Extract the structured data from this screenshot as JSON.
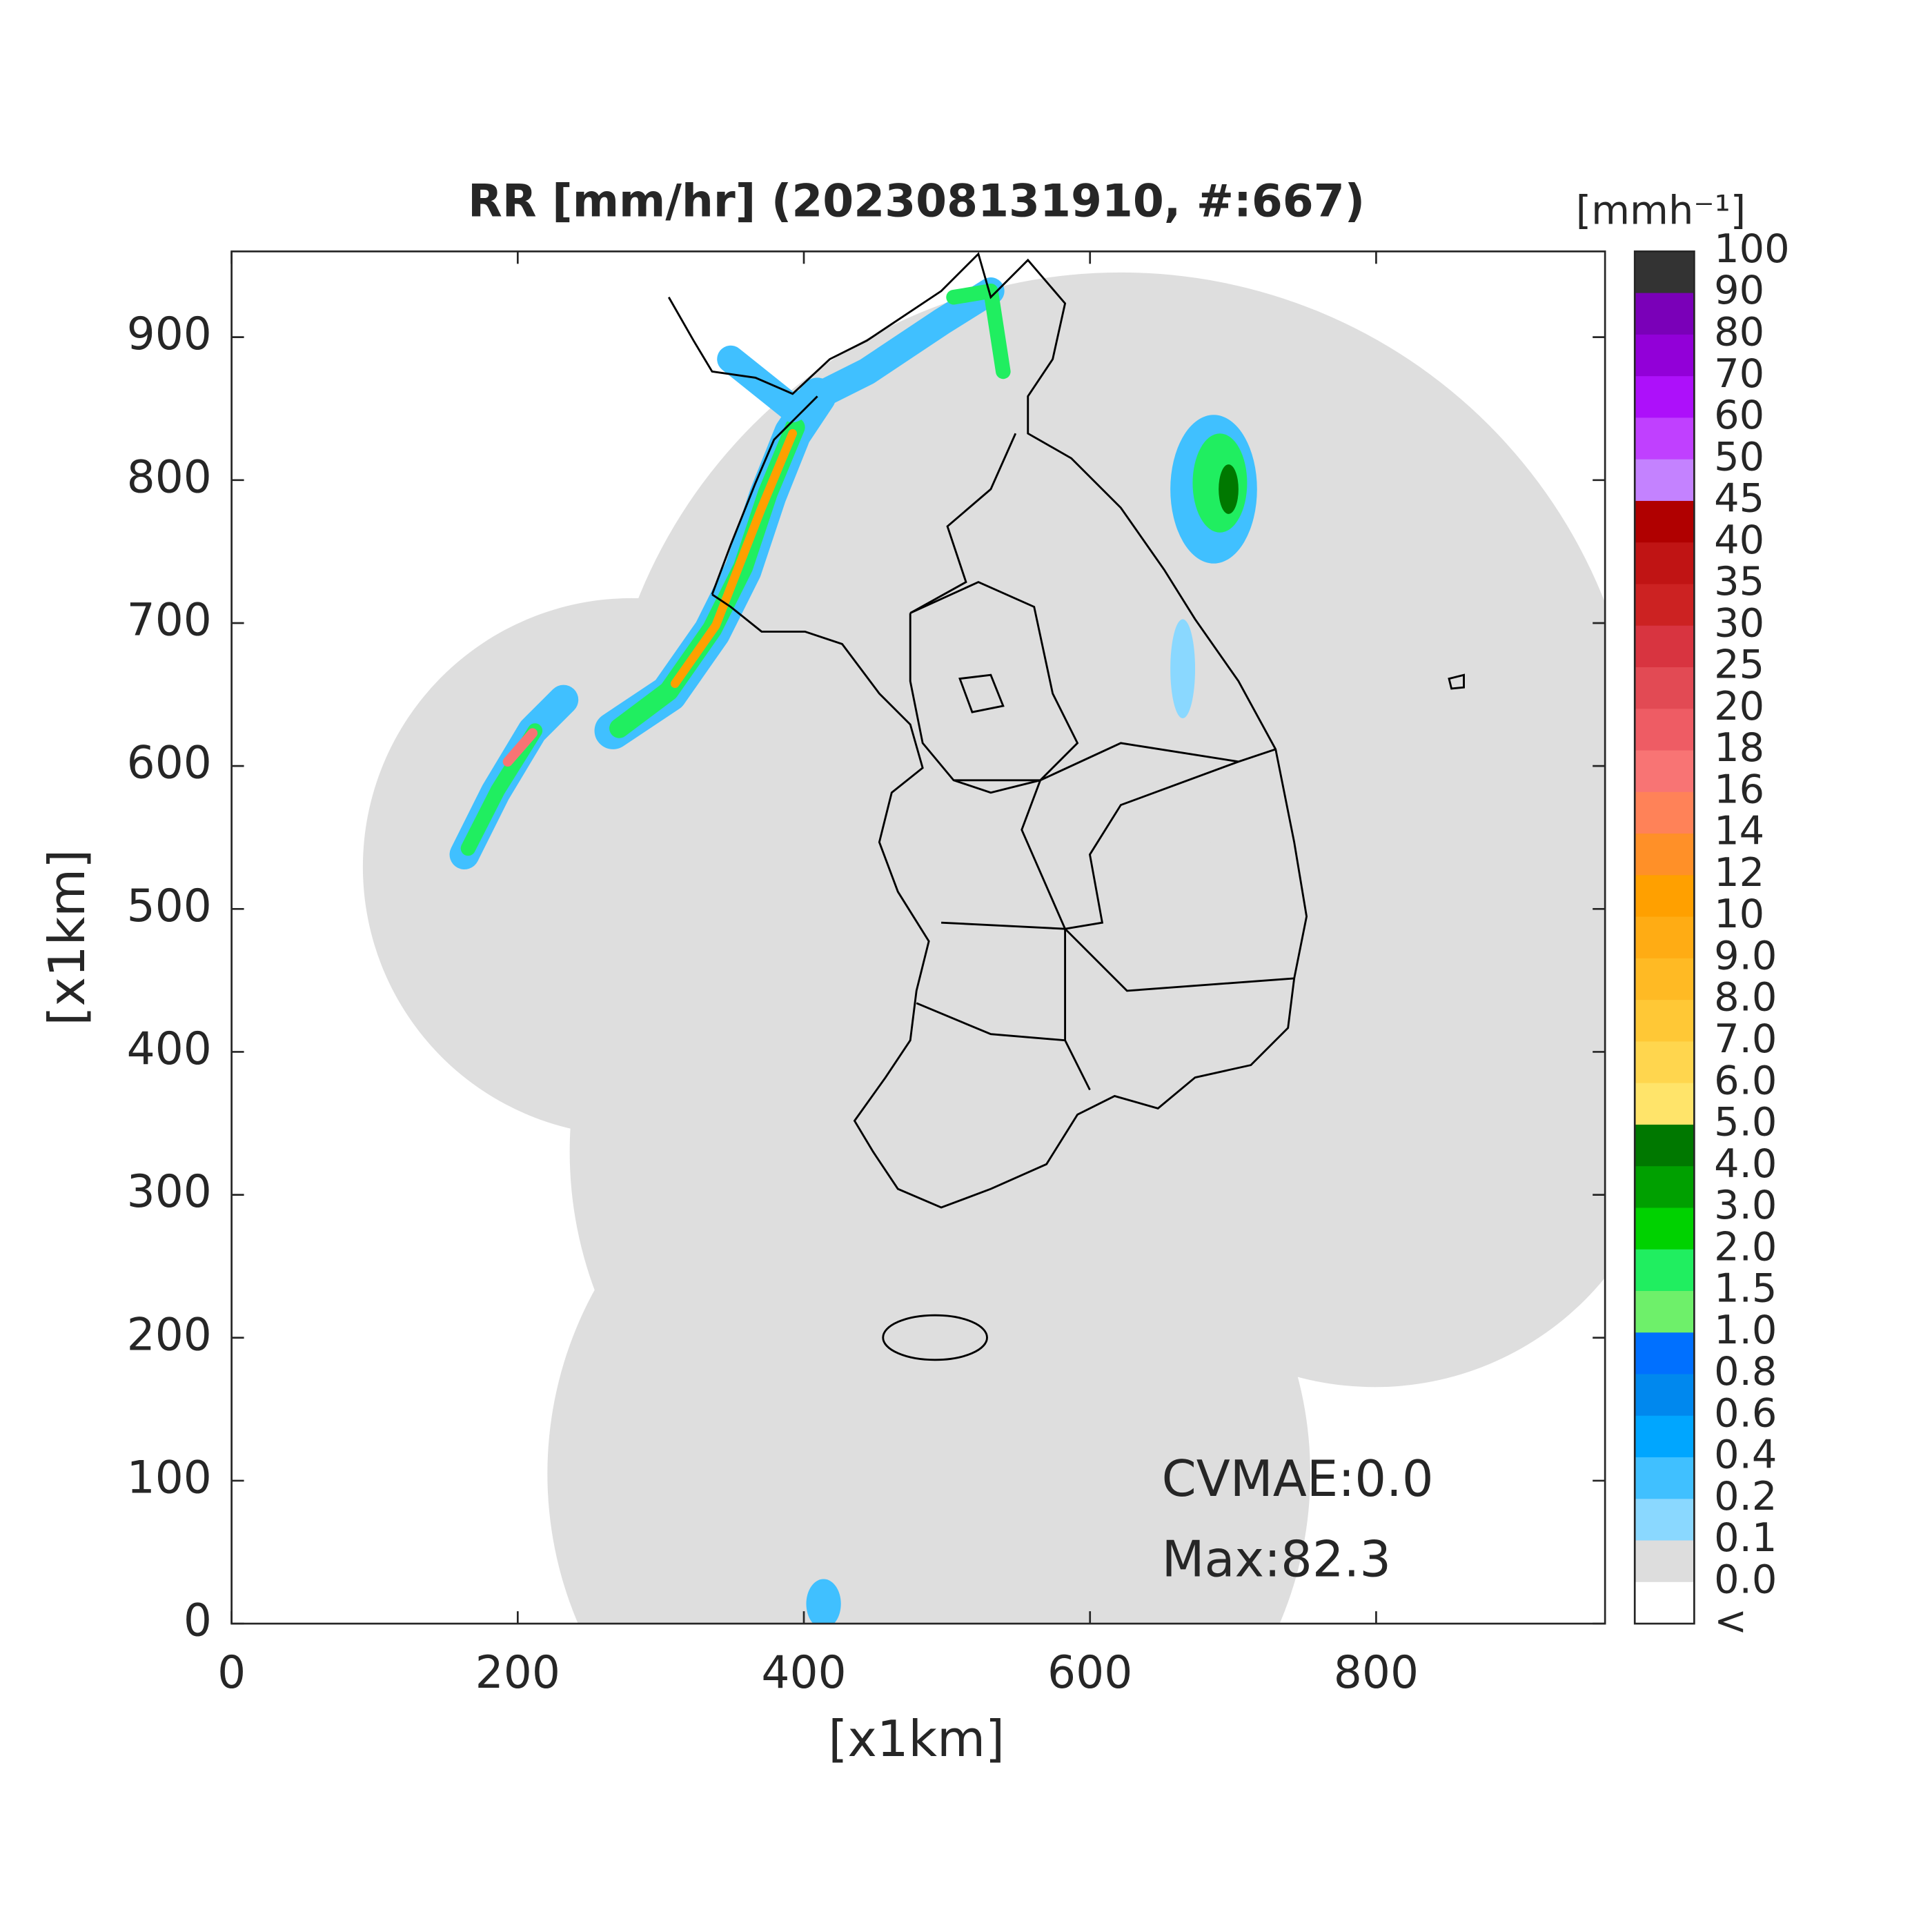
{
  "title": "RR [mm/hr] (202308131910, #:667)",
  "axes": {
    "xlabel": "[x1km]",
    "ylabel": "[x1km]",
    "xlim": [
      0,
      960
    ],
    "ylim": [
      0,
      960
    ],
    "xticks": [
      0,
      200,
      400,
      600,
      800
    ],
    "yticks": [
      0,
      100,
      200,
      300,
      400,
      500,
      600,
      700,
      800,
      900
    ]
  },
  "annotations": [
    "CVMAE:0.0",
    "Max:82.3"
  ],
  "colorbar": {
    "label": "[mmh⁻¹]",
    "levels": [
      "100",
      "90",
      "80",
      "70",
      "60",
      "50",
      "45",
      "40",
      "35",
      "30",
      "25",
      "20",
      "18",
      "16",
      "14",
      "12",
      "10",
      "9.0",
      "8.0",
      "7.0",
      "6.0",
      "5.0",
      "4.0",
      "3.0",
      "2.0",
      "1.5",
      "1.0",
      "0.8",
      "0.6",
      "0.4",
      "0.2",
      "0.1",
      "0.0",
      "<"
    ],
    "colors": [
      "#333333",
      "#7a00b8",
      "#9200d8",
      "#ad10fa",
      "#c040ff",
      "#c482ff",
      "#b00000",
      "#c01414",
      "#cc2222",
      "#d83440",
      "#e24a54",
      "#ee5c64",
      "#f87474",
      "#ff8258",
      "#ff9028",
      "#ffa000",
      "#ffac14",
      "#ffba24",
      "#ffc836",
      "#ffd64e",
      "#ffe46a",
      "#007800",
      "#00a000",
      "#00d200",
      "#20ee60",
      "#6ef06a",
      "#0070ff",
      "#0088ee",
      "#00a6ff",
      "#40c0ff",
      "#8ad8ff",
      "#dddddd",
      "#ffffff"
    ]
  }
}
